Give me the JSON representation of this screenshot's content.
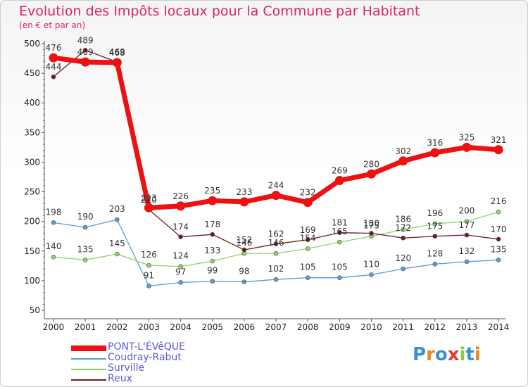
{
  "header": {
    "title": "Evolution des Impôts locaux pour la Commune par Habitant",
    "subtitle": "(en € et par an)"
  },
  "logo": {
    "text": "Proxiti",
    "colors": [
      "#3b8fd6",
      "#e88a1a",
      "#3b8fd6",
      "#e23b3b",
      "#8dc63f",
      "#3b8fd6",
      "#e88a1a"
    ]
  },
  "chart_data": {
    "type": "line",
    "title": "Evolution des Impôts locaux pour la Commune par Habitant",
    "subtitle": "(en € et par an)",
    "xlabel": "",
    "ylabel": "",
    "ylim": [
      50,
      500
    ],
    "yticks": [
      50,
      100,
      150,
      200,
      250,
      300,
      350,
      400,
      450,
      500
    ],
    "grid": false,
    "legend_position": "bottom-left",
    "categories": [
      "2000",
      "2001",
      "2002",
      "2003",
      "2004",
      "2005",
      "2006",
      "2007",
      "2008",
      "2009",
      "2010",
      "2011",
      "2012",
      "2013",
      "2014"
    ],
    "series": [
      {
        "name": "PONT-L'ÉVêQUE",
        "color": "#ee1111",
        "values": [
          476,
          469,
          468,
          223,
          226,
          235,
          233,
          244,
          232,
          269,
          280,
          302,
          316,
          325,
          321
        ]
      },
      {
        "name": "Coudray-Rabut",
        "color": "#5b9bd5",
        "values": [
          198,
          190,
          203,
          91,
          97,
          99,
          98,
          102,
          105,
          105,
          110,
          120,
          128,
          132,
          135
        ]
      },
      {
        "name": "Surville",
        "color": "#8fd468",
        "values": [
          140,
          135,
          145,
          126,
          124,
          133,
          146,
          146,
          154,
          165,
          175,
          186,
          196,
          200,
          216
        ]
      },
      {
        "name": "Reux",
        "color": "#6b1a22",
        "values": [
          444,
          489,
          469,
          220,
          174,
          178,
          152,
          162,
          169,
          181,
          180,
          172,
          175,
          177,
          170
        ]
      }
    ]
  }
}
